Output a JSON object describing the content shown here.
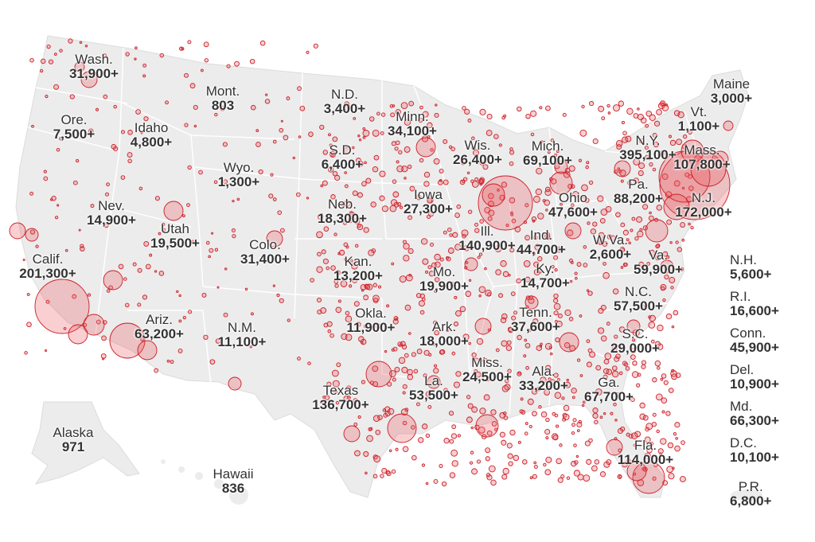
{
  "map": {
    "bubble_fill": "#e8535a",
    "bubble_stroke": "#cc1f28",
    "land_color": "#ececec",
    "border_color": "#ffffff",
    "states": [
      {
        "id": "wa",
        "name": "Wash.",
        "value": "31,900+"
      },
      {
        "id": "or",
        "name": "Ore.",
        "value": "7,500+"
      },
      {
        "id": "ca",
        "name": "Calif.",
        "value": "201,300+"
      },
      {
        "id": "nv",
        "name": "Nev.",
        "value": "14,900+"
      },
      {
        "id": "id",
        "name": "Idaho",
        "value": "4,800+"
      },
      {
        "id": "mt",
        "name": "Mont.",
        "value": "803"
      },
      {
        "id": "wy",
        "name": "Wyo.",
        "value": "1,300+"
      },
      {
        "id": "ut",
        "name": "Utah",
        "value": "19,500+"
      },
      {
        "id": "co",
        "name": "Colo.",
        "value": "31,400+"
      },
      {
        "id": "az",
        "name": "Ariz.",
        "value": "63,200+"
      },
      {
        "id": "nm",
        "name": "N.M.",
        "value": "11,100+"
      },
      {
        "id": "nd",
        "name": "N.D.",
        "value": "3,400+"
      },
      {
        "id": "sd",
        "name": "S.D.",
        "value": "6,400+"
      },
      {
        "id": "ne",
        "name": "Neb.",
        "value": "18,300+"
      },
      {
        "id": "ks",
        "name": "Kan.",
        "value": "13,200+"
      },
      {
        "id": "ok",
        "name": "Okla.",
        "value": "11,900+"
      },
      {
        "id": "tx",
        "name": "Texas",
        "value": "136,700+"
      },
      {
        "id": "mn",
        "name": "Minn.",
        "value": "34,100+"
      },
      {
        "id": "ia",
        "name": "Iowa",
        "value": "27,300+"
      },
      {
        "id": "mo",
        "name": "Mo.",
        "value": "19,900+"
      },
      {
        "id": "ar",
        "name": "Ark.",
        "value": "18,000+"
      },
      {
        "id": "la",
        "name": "La.",
        "value": "53,500+"
      },
      {
        "id": "wi",
        "name": "Wis.",
        "value": "26,400+"
      },
      {
        "id": "il",
        "name": "Ill.",
        "value": "140,900+"
      },
      {
        "id": "ms",
        "name": "Miss.",
        "value": "24,500+"
      },
      {
        "id": "mi",
        "name": "Mich.",
        "value": "69,100+"
      },
      {
        "id": "in",
        "name": "Ind.",
        "value": "44,700+"
      },
      {
        "id": "oh",
        "name": "Ohio",
        "value": "47,600+"
      },
      {
        "id": "ky",
        "name": "Ky.",
        "value": "14,700+"
      },
      {
        "id": "tn",
        "name": "Tenn.",
        "value": "37,600+"
      },
      {
        "id": "al",
        "name": "Ala.",
        "value": "33,200+"
      },
      {
        "id": "ga",
        "name": "Ga.",
        "value": "67,700+"
      },
      {
        "id": "fl",
        "name": "Fla.",
        "value": "114,000+"
      },
      {
        "id": "sc",
        "name": "S.C.",
        "value": "29,000+"
      },
      {
        "id": "nc",
        "name": "N.C.",
        "value": "57,500+"
      },
      {
        "id": "va",
        "name": "Va.",
        "value": "59,900+"
      },
      {
        "id": "wv",
        "name": "W.Va.",
        "value": "2,600+"
      },
      {
        "id": "pa",
        "name": "Pa.",
        "value": "88,200+"
      },
      {
        "id": "ny",
        "name": "N.Y.",
        "value": "395,100+"
      },
      {
        "id": "nj",
        "name": "N.J.",
        "value": "172,000+"
      },
      {
        "id": "vt",
        "name": "Vt.",
        "value": "1,100+"
      },
      {
        "id": "me",
        "name": "Maine",
        "value": "3,000+"
      },
      {
        "id": "ma",
        "name": "Mass.",
        "value": "107,800+"
      },
      {
        "id": "ak",
        "name": "Alaska",
        "value": "971"
      },
      {
        "id": "hi",
        "name": "Hawaii",
        "value": "836"
      }
    ],
    "sidebar": [
      {
        "id": "nh",
        "name": "N.H.",
        "value": "5,600+"
      },
      {
        "id": "ri",
        "name": "R.I.",
        "value": "16,600+"
      },
      {
        "id": "ct",
        "name": "Conn.",
        "value": "45,900+"
      },
      {
        "id": "de",
        "name": "Del.",
        "value": "10,900+"
      },
      {
        "id": "md",
        "name": "Md.",
        "value": "66,300+"
      },
      {
        "id": "dc",
        "name": "D.C.",
        "value": "10,100+"
      }
    ],
    "pr": {
      "name": "P.R.",
      "value": "6,800+"
    }
  }
}
